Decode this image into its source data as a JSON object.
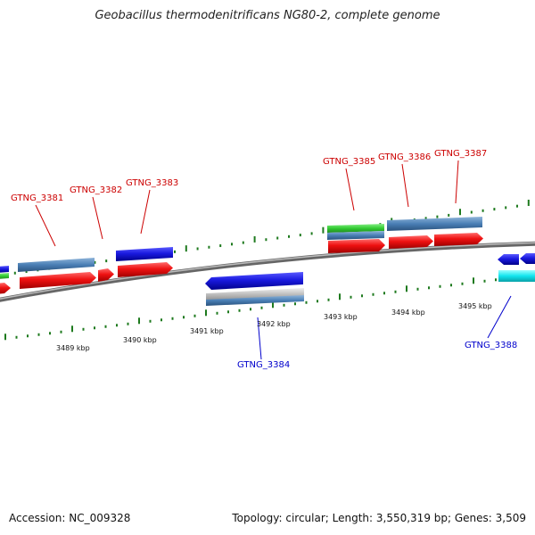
{
  "title": "Geobacillus thermodenitrificans NG80-2, complete genome",
  "footer": {
    "accession": "Accession: NC_009328",
    "topology": "Topology: circular; Length: 3,550,319 bp; Genes: 3,509"
  },
  "colors": {
    "backbone": "#888888",
    "tick": "#1e7a1e",
    "label_top": "#cc0000",
    "label_bottom": "#0000cc",
    "gene_red": "#ee1111",
    "gene_blue": "#1a1ae0",
    "gene_steel": "#4a7fb5",
    "gene_green": "#33cc33",
    "gene_cyan": "#11e5ee",
    "gene_grey": "#bbbbbb"
  },
  "kbp_ticks": [
    "3489 kbp",
    "3490 kbp",
    "3491 kbp",
    "3492 kbp",
    "3493 kbp",
    "3494 kbp",
    "3495 kbp"
  ],
  "gene_labels": [
    {
      "text": "GTNG_3381",
      "side": "top"
    },
    {
      "text": "GTNG_3382",
      "side": "top"
    },
    {
      "text": "GTNG_3383",
      "side": "top"
    },
    {
      "text": "GTNG_3385",
      "side": "top"
    },
    {
      "text": "GTNG_3386",
      "side": "top"
    },
    {
      "text": "GTNG_3387",
      "side": "top"
    },
    {
      "text": "GTNG_3384",
      "side": "bottom"
    },
    {
      "text": "GTNG_3388",
      "side": "bottom"
    }
  ]
}
